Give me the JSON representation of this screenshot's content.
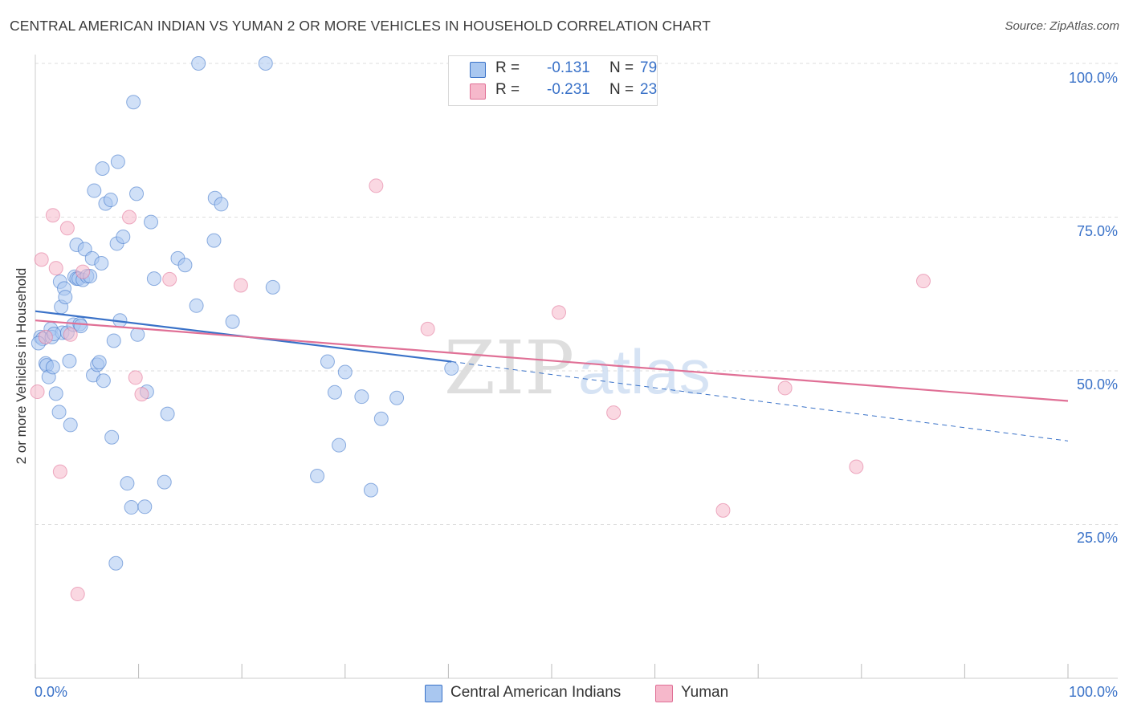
{
  "header": {
    "title": "CENTRAL AMERICAN INDIAN VS YUMAN 2 OR MORE VEHICLES IN HOUSEHOLD CORRELATION CHART",
    "source": "Source: ZipAtlas.com"
  },
  "legend": {
    "rows": [
      {
        "r_label": "R =",
        "r_value": "-0.131",
        "n_label": "N =",
        "n_value": "79"
      },
      {
        "r_label": "R =",
        "r_value": "-0.231",
        "n_label": "N =",
        "n_value": "23"
      }
    ]
  },
  "axes": {
    "ylabel": "2 or more Vehicles in Household",
    "x_ticks": [
      "0.0%",
      "100.0%"
    ],
    "y_ticks": [
      "100.0%",
      "75.0%",
      "50.0%",
      "25.0%"
    ]
  },
  "watermark": {
    "part1": "ZIP",
    "part2": "atlas"
  },
  "colors": {
    "blue": "#3a72c8",
    "blue_fill": "#a9c7f0",
    "pink": "#e07096",
    "pink_fill": "#f6b8cb",
    "tick_text": "#3a72c8",
    "grid": "#dddddd"
  },
  "chart_data": {
    "type": "scatter",
    "xlim": [
      0,
      100
    ],
    "ylim": [
      0,
      100
    ],
    "grid": true,
    "legend_position": "top-center",
    "series": [
      {
        "name": "Central American Indians",
        "color": "#3a72c8",
        "trend": {
          "x0": 0,
          "y0": 59.7,
          "x1": 40.3,
          "y1": 51.5,
          "dashed_to_x": 100,
          "dashed_to_y": 38.6
        },
        "points": [
          [
            0.5,
            55.5
          ],
          [
            0.7,
            55.2
          ],
          [
            1.0,
            51.2
          ],
          [
            1.1,
            50.9
          ],
          [
            1.3,
            49.0
          ],
          [
            1.5,
            56.8
          ],
          [
            1.6,
            55.5
          ],
          [
            1.7,
            50.6
          ],
          [
            2.0,
            46.3
          ],
          [
            2.3,
            43.3
          ],
          [
            2.4,
            64.5
          ],
          [
            2.5,
            60.4
          ],
          [
            2.6,
            56.2
          ],
          [
            2.8,
            63.4
          ],
          [
            2.9,
            62.0
          ],
          [
            3.1,
            56.2
          ],
          [
            3.3,
            51.6
          ],
          [
            3.4,
            41.2
          ],
          [
            3.7,
            57.5
          ],
          [
            3.8,
            65.3
          ],
          [
            4.0,
            65.0
          ],
          [
            4.0,
            70.5
          ],
          [
            4.2,
            65.0
          ],
          [
            4.3,
            57.6
          ],
          [
            4.4,
            57.3
          ],
          [
            4.6,
            64.8
          ],
          [
            4.8,
            69.8
          ],
          [
            5.0,
            65.4
          ],
          [
            5.3,
            65.4
          ],
          [
            5.5,
            68.3
          ],
          [
            5.6,
            49.3
          ],
          [
            5.7,
            79.3
          ],
          [
            6.0,
            51.0
          ],
          [
            6.2,
            51.4
          ],
          [
            6.4,
            67.5
          ],
          [
            6.5,
            82.9
          ],
          [
            6.6,
            48.4
          ],
          [
            6.8,
            77.2
          ],
          [
            7.3,
            77.8
          ],
          [
            7.4,
            39.2
          ],
          [
            7.6,
            54.9
          ],
          [
            7.8,
            18.7
          ],
          [
            7.9,
            70.7
          ],
          [
            8.0,
            84.0
          ],
          [
            8.2,
            58.2
          ],
          [
            8.5,
            71.8
          ],
          [
            8.9,
            31.7
          ],
          [
            9.3,
            27.8
          ],
          [
            9.5,
            93.7
          ],
          [
            9.9,
            55.9
          ],
          [
            9.8,
            78.8
          ],
          [
            10.6,
            27.9
          ],
          [
            10.8,
            46.6
          ],
          [
            11.2,
            74.2
          ],
          [
            11.5,
            65.0
          ],
          [
            12.5,
            31.9
          ],
          [
            12.8,
            43.0
          ],
          [
            13.8,
            68.3
          ],
          [
            14.5,
            67.2
          ],
          [
            15.6,
            60.6
          ],
          [
            15.8,
            100
          ],
          [
            17.3,
            71.2
          ],
          [
            17.4,
            78.1
          ],
          [
            18.0,
            77.1
          ],
          [
            19.1,
            58.0
          ],
          [
            22.3,
            100
          ],
          [
            23.0,
            63.6
          ],
          [
            27.3,
            32.9
          ],
          [
            28.3,
            51.5
          ],
          [
            29.0,
            46.5
          ],
          [
            29.4,
            37.9
          ],
          [
            30.0,
            49.8
          ],
          [
            31.6,
            45.8
          ],
          [
            32.5,
            30.6
          ],
          [
            33.5,
            42.2
          ],
          [
            35.0,
            45.6
          ],
          [
            40.3,
            50.4
          ],
          [
            0.3,
            54.5
          ],
          [
            1.8,
            56.0
          ]
        ]
      },
      {
        "name": "Yuman",
        "color": "#e07096",
        "trend": {
          "x0": 0,
          "y0": 58.2,
          "x1": 100,
          "y1": 45.1
        },
        "points": [
          [
            0.2,
            46.6
          ],
          [
            0.6,
            68.1
          ],
          [
            1.0,
            55.5
          ],
          [
            1.7,
            75.3
          ],
          [
            2.0,
            66.7
          ],
          [
            2.4,
            33.6
          ],
          [
            3.1,
            73.2
          ],
          [
            3.4,
            55.9
          ],
          [
            4.1,
            13.7
          ],
          [
            4.6,
            66.1
          ],
          [
            9.1,
            75.0
          ],
          [
            9.7,
            48.9
          ],
          [
            10.3,
            46.2
          ],
          [
            13.0,
            64.9
          ],
          [
            19.9,
            63.9
          ],
          [
            33.0,
            80.1
          ],
          [
            38.0,
            56.8
          ],
          [
            50.7,
            59.5
          ],
          [
            56.0,
            43.2
          ],
          [
            66.6,
            27.3
          ],
          [
            72.6,
            47.2
          ],
          [
            79.5,
            34.4
          ],
          [
            86.0,
            64.6
          ]
        ]
      }
    ]
  }
}
